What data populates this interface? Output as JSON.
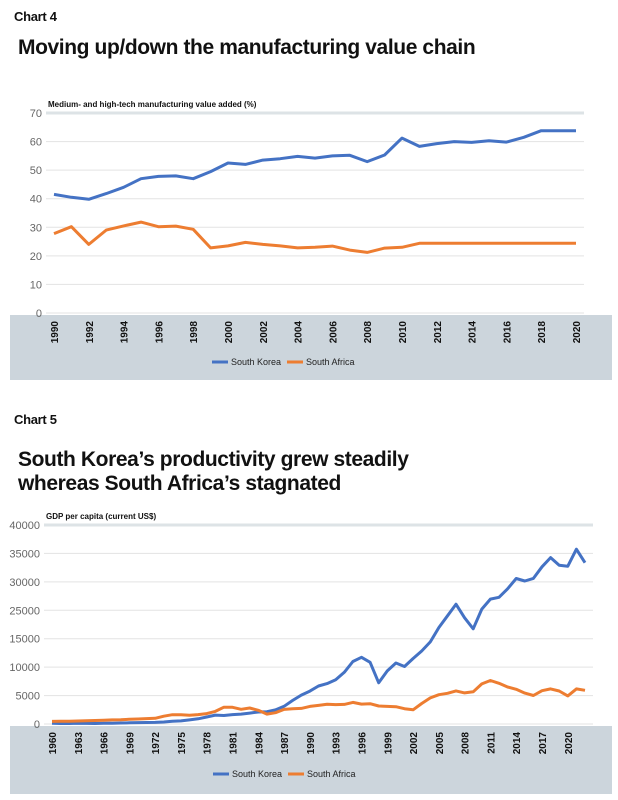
{
  "chart4_label": "Chart 4",
  "chart4_title": "Moving up/down the manufacturing value chain",
  "chart5_label": "Chart 5",
  "chart5_title_line1": "South Korea’s productivity grew steadily",
  "chart5_title_line2": "whereas South Africa’s stagnated",
  "colors": {
    "south_korea": "#4472c4",
    "south_africa": "#ed7d31",
    "band": "#ccd5dc",
    "grid": "#e3e3e3"
  },
  "chart_data": [
    {
      "type": "line",
      "title": "Moving up/down the manufacturing value chain",
      "ylabel": "Medium- and high-tech manufacturing value added (%)",
      "ylim": [
        0,
        70
      ],
      "yticks": [
        "0",
        "10",
        "20",
        "30",
        "40",
        "50",
        "60",
        "70"
      ],
      "x": [
        1990,
        1991,
        1992,
        1993,
        1994,
        1995,
        1996,
        1997,
        1998,
        1999,
        2000,
        2001,
        2002,
        2003,
        2004,
        2005,
        2006,
        2007,
        2008,
        2009,
        2010,
        2011,
        2012,
        2013,
        2014,
        2015,
        2016,
        2017,
        2018,
        2019,
        2020
      ],
      "xticks": [
        "1990",
        "1992",
        "1994",
        "1996",
        "1998",
        "2000",
        "2002",
        "2004",
        "2006",
        "2008",
        "2010",
        "2012",
        "2014",
        "2016",
        "2018",
        "2020"
      ],
      "grid": true,
      "legend": "bottom",
      "series": [
        {
          "name": "South Korea",
          "values": [
            41.5,
            40.5,
            39.8,
            41.8,
            44,
            47,
            47.8,
            48,
            47,
            49.5,
            52.5,
            52,
            53.5,
            54,
            54.8,
            54.2,
            55,
            55.2,
            53,
            55.3,
            61.2,
            58.3,
            59.3,
            60,
            59.7,
            60.3,
            59.8,
            61.5,
            63.8,
            63.8,
            63.8
          ]
        },
        {
          "name": "South Africa",
          "values": [
            27.8,
            30.2,
            24,
            29,
            30.5,
            31.8,
            30.2,
            30.4,
            29.3,
            22.8,
            23.5,
            24.7,
            24,
            23.5,
            22.8,
            23,
            23.4,
            22,
            21.2,
            22.7,
            23,
            24.4,
            24.4,
            24.4,
            24.4,
            24.4,
            24.4,
            24.4,
            24.4,
            24.4,
            24.4
          ]
        }
      ]
    },
    {
      "type": "line",
      "title": "South Korea’s productivity grew steadily whereas South Africa’s stagnated",
      "ylabel": "GDP per capita (current US$)",
      "ylim": [
        0,
        40000
      ],
      "yticks": [
        "0",
        "5000",
        "10000",
        "15000",
        "25000",
        "30000",
        "35000",
        "40000"
      ],
      "xstart": 1960,
      "xticks": [
        "1960",
        "1963",
        "1966",
        "1969",
        "1972",
        "1975",
        "1978",
        "1981",
        "1984",
        "1987",
        "1990",
        "1993",
        "1996",
        "1999",
        "2002",
        "2005",
        "2008",
        "2011",
        "2014",
        "2017",
        "2020"
      ],
      "grid": true,
      "legend": "bottom",
      "series": [
        {
          "name": "South Korea",
          "values": [
            158,
            94,
            106,
            146,
            124,
            109,
            133,
            161,
            198,
            243,
            279,
            301,
            324,
            406,
            563,
            616,
            830,
            1055,
            1405,
            1783,
            1715,
            1883,
            1993,
            2199,
            2413,
            2482,
            2835,
            3555,
            4749,
            5817,
            6610,
            7637,
            8127,
            8885,
            10385,
            12565,
            13403,
            12398,
            8282,
            10672,
            12257,
            11561,
            13165,
            14673,
            16496,
            19403,
            21744,
            24086,
            21350,
            19144,
            23087,
            25100,
            25459,
            27180,
            29253,
            28737,
            29274,
            31601,
            33447,
            31902,
            31721,
            35142,
            32423
          ]
        },
        {
          "name": "South Africa",
          "values": [
            529,
            543,
            566,
            612,
            665,
            709,
            755,
            824,
            861,
            949,
            1004,
            1083,
            1142,
            1559,
            1874,
            1866,
            1768,
            1898,
            2090,
            2540,
            3386,
            3351,
            2950,
            3209,
            2747,
            1997,
            2279,
            2937,
            3084,
            3136,
            3547,
            3738,
            3957,
            3897,
            3938,
            4337,
            3993,
            4081,
            3612,
            3536,
            3487,
            3083,
            2854,
            4120,
            5248,
            5882,
            6167,
            6656,
            6250,
            6471,
            8059,
            8737,
            8174,
            7441,
            6965,
            6205,
            5735,
            6690,
            7048,
            6624,
            5656,
            7055,
            6776
          ]
        }
      ]
    }
  ]
}
